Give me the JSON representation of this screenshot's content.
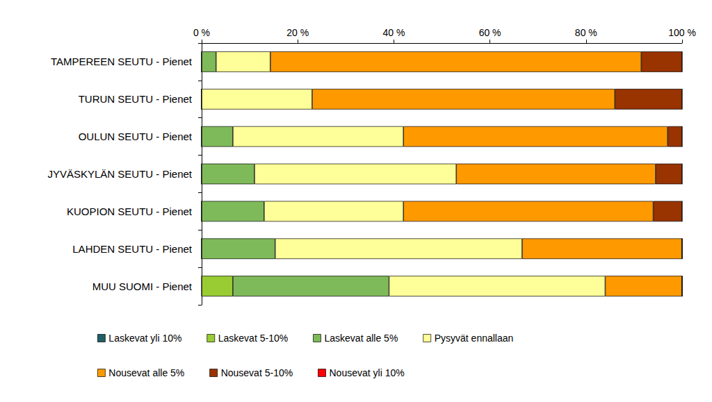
{
  "chart_data": {
    "type": "bar",
    "orientation": "horizontal",
    "stacked": true,
    "grid": false,
    "legend": "bottom",
    "categories": [
      "TAMPEREEN SEUTU - Pienet",
      "TURUN SEUTU - Pienet",
      "OULUN SEUTU - Pienet",
      "JYVÄSKYLÄN SEUTU - Pienet",
      "KUOPION SEUTU - Pienet",
      "LAHDEN SEUTU - Pienet",
      "MUU SUOMI - Pienet"
    ],
    "xlim": [
      0,
      100
    ],
    "xticks": [
      {
        "value": 0,
        "label": "0 %"
      },
      {
        "value": 20,
        "label": "20 %"
      },
      {
        "value": 40,
        "label": "40 %"
      },
      {
        "value": 60,
        "label": "60 %"
      },
      {
        "value": 80,
        "label": "80 %"
      },
      {
        "value": 100,
        "label": "100 %"
      }
    ],
    "series": [
      {
        "name": "Laskevat yli 10%",
        "color": "#1f5f66",
        "values": [
          0,
          0,
          0,
          0,
          0,
          0,
          0
        ]
      },
      {
        "name": "Laskevat 5-10%",
        "color": "#99cc33",
        "values": [
          0,
          0,
          0,
          0,
          0,
          0,
          6.5
        ]
      },
      {
        "name": "Laskevat alle 5%",
        "color": "#7fba5a",
        "values": [
          3,
          0,
          6.5,
          11,
          13,
          15.3,
          32.5
        ]
      },
      {
        "name": "Pysyvät ennallaan",
        "color": "#ffff99",
        "values": [
          11.3,
          23,
          35.5,
          42,
          29,
          51.4,
          45
        ]
      },
      {
        "name": "Nousevat alle 5%",
        "color": "#ff9900",
        "values": [
          77.2,
          63,
          55,
          41.5,
          52,
          33.3,
          16
        ]
      },
      {
        "name": "Nousevat 5-10%",
        "color": "#993300",
        "values": [
          8.5,
          14,
          3,
          5.5,
          6,
          0,
          0
        ]
      },
      {
        "name": "Nousevat yli 10%",
        "color": "#ff0000",
        "values": [
          0,
          0,
          0,
          0,
          0,
          0,
          0
        ]
      }
    ]
  }
}
